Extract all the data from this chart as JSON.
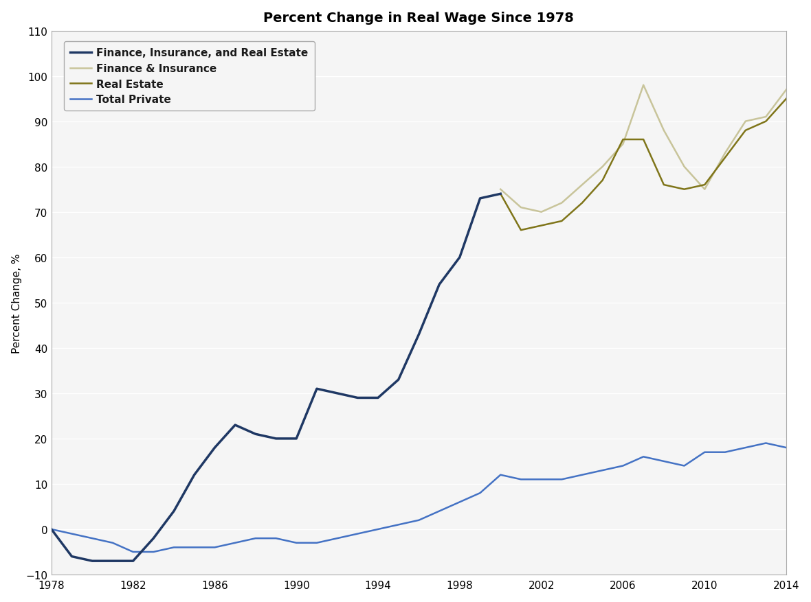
{
  "title": "Percent Change in Real Wage Since 1978",
  "ylabel": "Percent Change, %",
  "xlim": [
    1978,
    2014
  ],
  "ylim": [
    -10,
    110
  ],
  "yticks": [
    -10,
    0,
    10,
    20,
    30,
    40,
    50,
    60,
    70,
    80,
    90,
    100,
    110
  ],
  "xticks": [
    1978,
    1982,
    1986,
    1990,
    1994,
    1998,
    2002,
    2006,
    2010,
    2014
  ],
  "background_color": "#ffffff",
  "plot_bg_color": "#f5f5f5",
  "grid_color": "#d0d0d0",
  "series": [
    {
      "label": "Finance, Insurance, and Real Estate",
      "color": "#1f3864",
      "linewidth": 2.5,
      "zorder": 4,
      "x": [
        1978,
        1979,
        1980,
        1981,
        1982,
        1983,
        1984,
        1985,
        1986,
        1987,
        1988,
        1989,
        1990,
        1991,
        1992,
        1993,
        1994,
        1995,
        1996,
        1997,
        1998,
        1999,
        2000
      ],
      "y": [
        0,
        -6,
        -7,
        -7,
        -7,
        -2,
        4,
        12,
        18,
        23,
        21,
        20,
        20,
        31,
        30,
        29,
        29,
        33,
        43,
        54,
        60,
        73,
        74
      ]
    },
    {
      "label": "Finance & Insurance",
      "color": "#c8c49a",
      "linewidth": 1.8,
      "zorder": 3,
      "x": [
        2000,
        2001,
        2002,
        2003,
        2004,
        2005,
        2006,
        2007,
        2008,
        2009,
        2010,
        2011,
        2012,
        2013,
        2014
      ],
      "y": [
        75,
        71,
        70,
        72,
        76,
        80,
        85,
        98,
        88,
        80,
        75,
        83,
        90,
        91,
        97
      ]
    },
    {
      "label": "Real Estate",
      "color": "#7f7519",
      "linewidth": 1.8,
      "zorder": 3,
      "x": [
        2000,
        2001,
        2002,
        2003,
        2004,
        2005,
        2006,
        2007,
        2008,
        2009,
        2010,
        2011,
        2012,
        2013,
        2014
      ],
      "y": [
        74,
        66,
        67,
        68,
        72,
        77,
        86,
        86,
        76,
        75,
        76,
        82,
        88,
        90,
        95
      ]
    },
    {
      "label": "Total Private",
      "color": "#4472c4",
      "linewidth": 1.8,
      "zorder": 2,
      "x": [
        1978,
        1979,
        1980,
        1981,
        1982,
        1983,
        1984,
        1985,
        1986,
        1987,
        1988,
        1989,
        1990,
        1991,
        1992,
        1993,
        1994,
        1995,
        1996,
        1997,
        1998,
        1999,
        2000,
        2001,
        2002,
        2003,
        2004,
        2005,
        2006,
        2007,
        2008,
        2009,
        2010,
        2011,
        2012,
        2013,
        2014
      ],
      "y": [
        0,
        -1,
        -2,
        -3,
        -5,
        -5,
        -4,
        -4,
        -4,
        -3,
        -2,
        -2,
        -3,
        -3,
        -2,
        -1,
        0,
        1,
        2,
        4,
        6,
        8,
        12,
        11,
        11,
        11,
        12,
        13,
        14,
        16,
        15,
        14,
        17,
        17,
        18,
        19,
        18
      ]
    }
  ],
  "legend_fontsize": 11,
  "title_fontsize": 14,
  "title_fontweight": "bold",
  "ylabel_fontsize": 11,
  "tick_fontsize": 11
}
